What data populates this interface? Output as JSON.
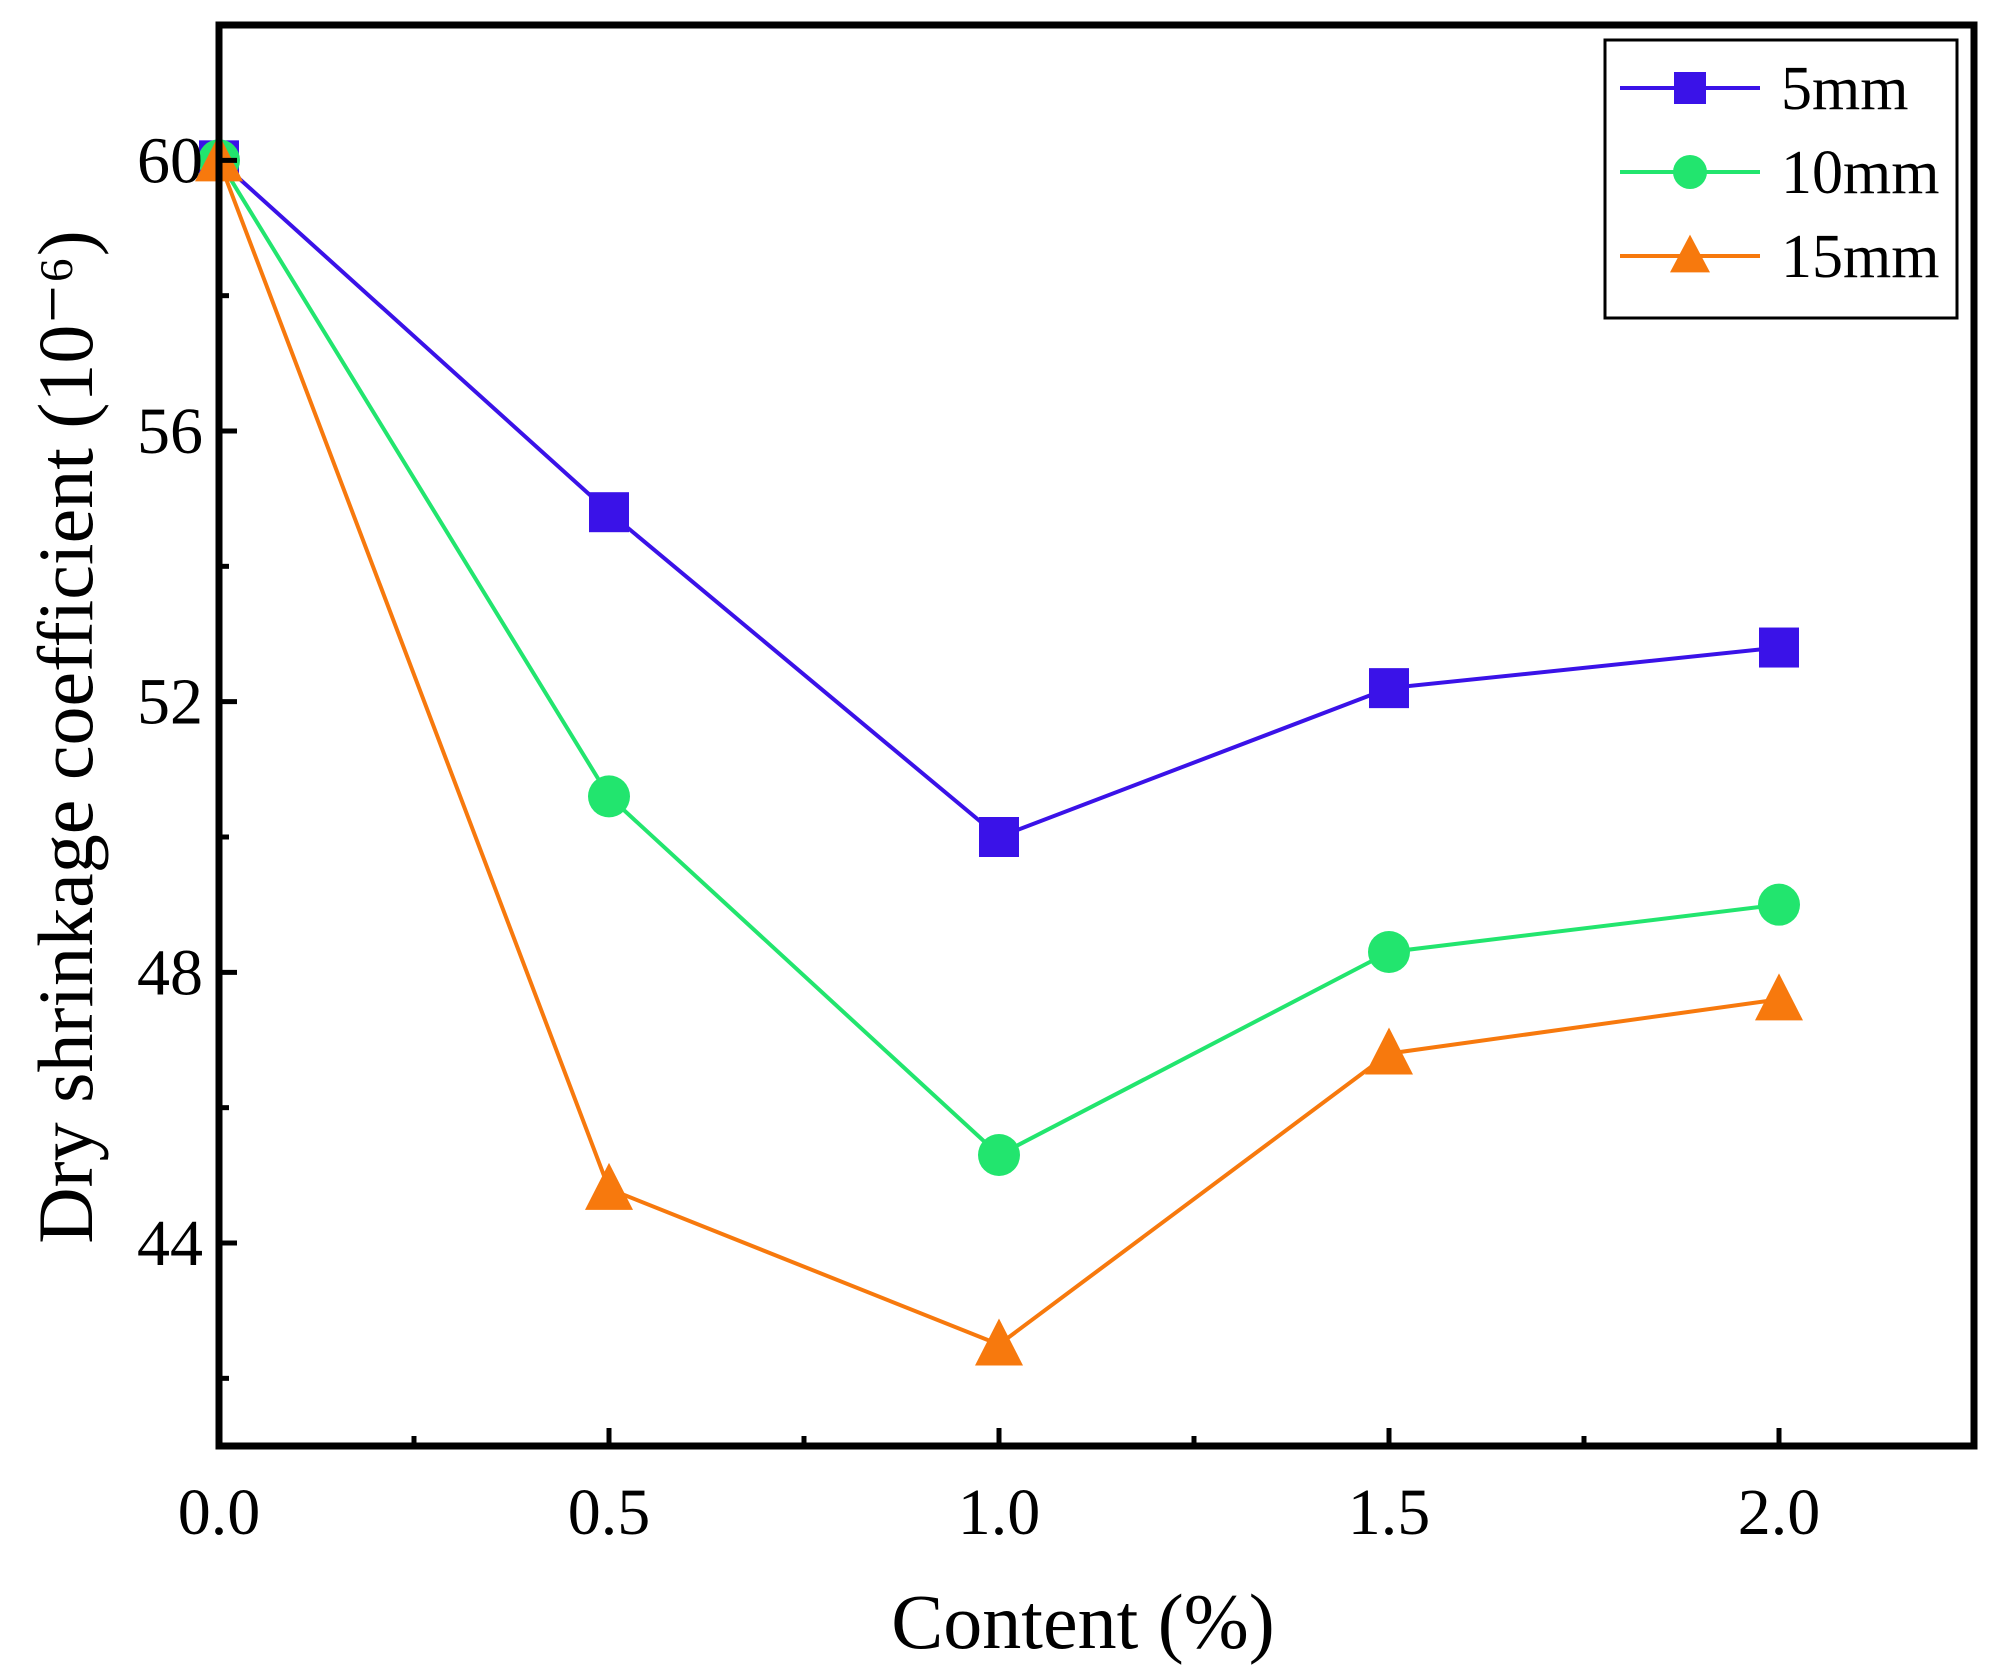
{
  "chart_data": {
    "type": "line",
    "title": "",
    "xlabel": "Content (%)",
    "ylabel": "Dry shrinkage coefficient (10⁻⁶)",
    "x": [
      0.0,
      0.5,
      1.0,
      1.5,
      2.0
    ],
    "xlim": [
      0.0,
      2.25
    ],
    "ylim": [
      41.0,
      62.0
    ],
    "xticks": [
      0.0,
      0.5,
      1.0,
      1.5,
      2.0
    ],
    "xtick_labels": [
      "0.0",
      "0.5",
      "1.0",
      "1.5",
      "2.0"
    ],
    "yticks": [
      44,
      48,
      52,
      56,
      60
    ],
    "ytick_labels": [
      "44",
      "48",
      "52",
      "56",
      "60"
    ],
    "grid": false,
    "legend_position": "top-right",
    "series": [
      {
        "name": "5mm",
        "color": "#3a12e8",
        "marker": "square",
        "values": [
          60.0,
          54.8,
          50.0,
          52.2,
          52.8
        ]
      },
      {
        "name": "10mm",
        "color": "#22e56e",
        "marker": "circle",
        "values": [
          60.0,
          50.6,
          45.3,
          48.3,
          49.0
        ]
      },
      {
        "name": "15mm",
        "color": "#f7790d",
        "marker": "triangle",
        "values": [
          60.0,
          44.8,
          42.5,
          46.8,
          47.6
        ]
      }
    ]
  }
}
